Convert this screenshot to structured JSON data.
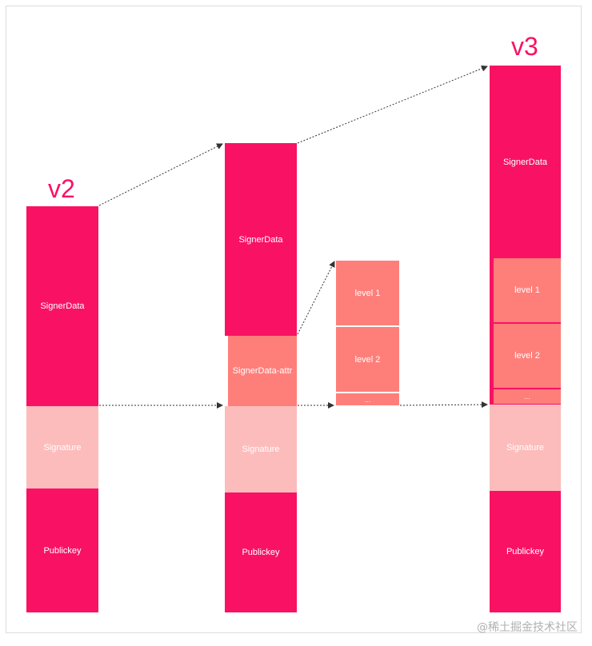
{
  "versions": {
    "v2": "v2",
    "v3": "v3"
  },
  "labels": {
    "signer_data": "SignerData",
    "signature": "Signature",
    "publickey": "Publickey",
    "signer_data_attr": "SignerData-attr",
    "level1": "level 1",
    "level2": "level 2",
    "ellipsis": "..."
  },
  "colors": {
    "main": "#f91264",
    "signature": "#fdbcbc",
    "attr": "#fe7f7a",
    "arrow": "#333333"
  },
  "watermark": "@稀土掘金技术社区"
}
